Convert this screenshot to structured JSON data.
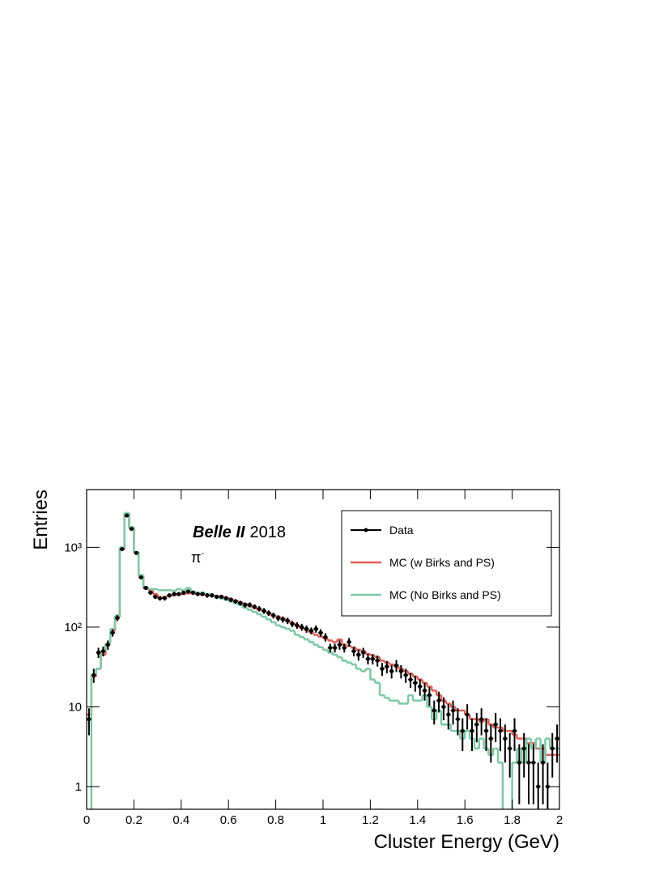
{
  "chart_data": {
    "type": "histogram",
    "x_label": "Cluster Energy (GeV)",
    "y_label": "Entries",
    "annotations": [
      "Belle II",
      "2018",
      "π",
      "-"
    ],
    "log_y": true,
    "legend_position": "upper right",
    "bins": [
      0,
      0.02,
      0.04,
      0.06,
      0.08,
      0.1,
      0.12,
      0.14,
      0.16,
      0.18,
      0.2,
      0.22,
      0.24,
      0.26,
      0.28,
      0.3,
      0.32,
      0.34,
      0.36,
      0.38,
      0.4,
      0.42,
      0.44,
      0.46,
      0.48,
      0.5,
      0.52,
      0.54,
      0.56,
      0.58,
      0.6,
      0.62,
      0.64,
      0.66,
      0.68,
      0.7,
      0.72,
      0.74,
      0.76,
      0.78,
      0.8,
      0.82,
      0.84,
      0.86,
      0.88,
      0.9,
      0.92,
      0.94,
      0.96,
      0.98,
      1,
      1.02,
      1.04,
      1.06,
      1.08,
      1.1,
      1.12,
      1.14,
      1.16,
      1.18,
      1.2,
      1.22,
      1.24,
      1.26,
      1.28,
      1.3,
      1.32,
      1.34,
      1.36,
      1.38,
      1.4,
      1.42,
      1.44,
      1.46,
      1.48,
      1.5,
      1.52,
      1.54,
      1.56,
      1.58,
      1.6,
      1.62,
      1.64,
      1.66,
      1.68,
      1.7,
      1.72,
      1.74,
      1.76,
      1.78,
      1.8,
      1.82,
      1.84,
      1.86,
      1.88,
      1.9,
      1.92,
      1.94,
      1.96,
      1.98,
      2
    ],
    "series": [
      {
        "name": "Data",
        "style": "points",
        "color": "#000000",
        "values": [
          7,
          25,
          48,
          50,
          60,
          85,
          130,
          950,
          2500,
          1700,
          850,
          420,
          310,
          270,
          240,
          230,
          230,
          250,
          260,
          260,
          270,
          280,
          270,
          260,
          260,
          250,
          250,
          240,
          240,
          230,
          220,
          210,
          200,
          190,
          190,
          180,
          170,
          160,
          150,
          140,
          130,
          125,
          120,
          110,
          105,
          100,
          95,
          90,
          95,
          85,
          75,
          55,
          55,
          60,
          55,
          65,
          50,
          45,
          48,
          40,
          40,
          38,
          30,
          32,
          28,
          33,
          28,
          25,
          22,
          20,
          18,
          16,
          14,
          9,
          12,
          10,
          8,
          9,
          7,
          5,
          8,
          5,
          6,
          7,
          5,
          4,
          6,
          5,
          4,
          3,
          5,
          2,
          3,
          2,
          2,
          1,
          2,
          1,
          3,
          4
        ],
        "errors": [
          2.6,
          5,
          7,
          7,
          8,
          9,
          11,
          31,
          50,
          41,
          29,
          20,
          18,
          16,
          15,
          15,
          15,
          16,
          16,
          16,
          16,
          17,
          16,
          16,
          16,
          16,
          16,
          15,
          15,
          15,
          15,
          14,
          14,
          14,
          14,
          13,
          13,
          13,
          12,
          12,
          11,
          11,
          11,
          10,
          10,
          10,
          10,
          9,
          10,
          9,
          9,
          7,
          7,
          8,
          7,
          8,
          7,
          7,
          7,
          6,
          6,
          6,
          5.5,
          5.7,
          5.3,
          5.7,
          5.3,
          5,
          4.7,
          4.5,
          4.2,
          4,
          3.7,
          3,
          3.5,
          3.2,
          2.8,
          3,
          2.6,
          2.2,
          2.8,
          2.2,
          2.4,
          2.6,
          2.2,
          2,
          2.4,
          2.2,
          2,
          1.7,
          2.2,
          1.4,
          1.7,
          1.4,
          1.4,
          1,
          1.4,
          1,
          1.7,
          2
        ]
      },
      {
        "name": "MC (w Birks and PS)",
        "style": "step",
        "color": "#dc5f5a",
        "values": [
          8,
          24,
          30,
          45,
          62,
          90,
          135,
          950,
          2600,
          1750,
          870,
          440,
          310,
          290,
          260,
          230,
          240,
          250,
          250,
          255,
          260,
          265,
          265,
          260,
          255,
          255,
          250,
          245,
          240,
          235,
          225,
          215,
          205,
          195,
          185,
          175,
          165,
          158,
          150,
          140,
          135,
          128,
          120,
          112,
          105,
          98,
          92,
          86,
          80,
          76,
          72,
          68,
          65,
          70,
          60,
          58,
          55,
          52,
          50,
          46,
          44,
          42,
          38,
          36,
          34,
          32,
          30,
          28,
          26,
          24,
          22,
          20,
          18,
          16,
          14,
          12,
          11,
          10,
          9,
          9,
          8,
          7,
          7,
          6.5,
          7,
          6,
          5.5,
          5.5,
          5,
          5,
          4.5,
          4,
          4,
          3.5,
          3.5,
          3,
          3,
          2.5,
          2.5,
          2.5
        ]
      },
      {
        "name": "MC (No Birks and PS)",
        "style": "step",
        "color": "#7ec8a6",
        "values": [
          0.5,
          25,
          30,
          50,
          62,
          95,
          140,
          1000,
          2700,
          1800,
          880,
          450,
          320,
          300,
          300,
          290,
          290,
          290,
          285,
          300,
          290,
          310,
          280,
          270,
          270,
          260,
          255,
          240,
          230,
          220,
          210,
          200,
          190,
          175,
          165,
          155,
          145,
          135,
          125,
          115,
          105,
          100,
          95,
          90,
          80,
          75,
          70,
          65,
          60,
          56,
          52,
          48,
          45,
          42,
          38,
          36,
          34,
          30,
          28,
          30,
          22,
          20,
          14,
          13,
          12,
          12,
          11,
          11,
          14,
          12,
          12,
          14,
          10,
          7,
          9,
          6,
          6,
          5,
          5,
          4,
          5,
          4,
          3,
          4,
          3,
          2.5,
          3,
          2,
          0.5,
          0.5,
          2,
          3,
          2,
          4,
          3,
          4,
          2,
          4,
          3,
          3
        ]
      }
    ],
    "xlim": [
      0,
      2
    ],
    "xticks": [
      0,
      0.2,
      0.4,
      0.6,
      0.8,
      1,
      1.2,
      1.4,
      1.6,
      1.8,
      2
    ],
    "ylim": [
      0.52,
      5300
    ],
    "yticks": [
      1,
      10,
      {
        "value": 100,
        "label": "10²"
      },
      {
        "value": 1000,
        "label": "10³"
      }
    ]
  }
}
